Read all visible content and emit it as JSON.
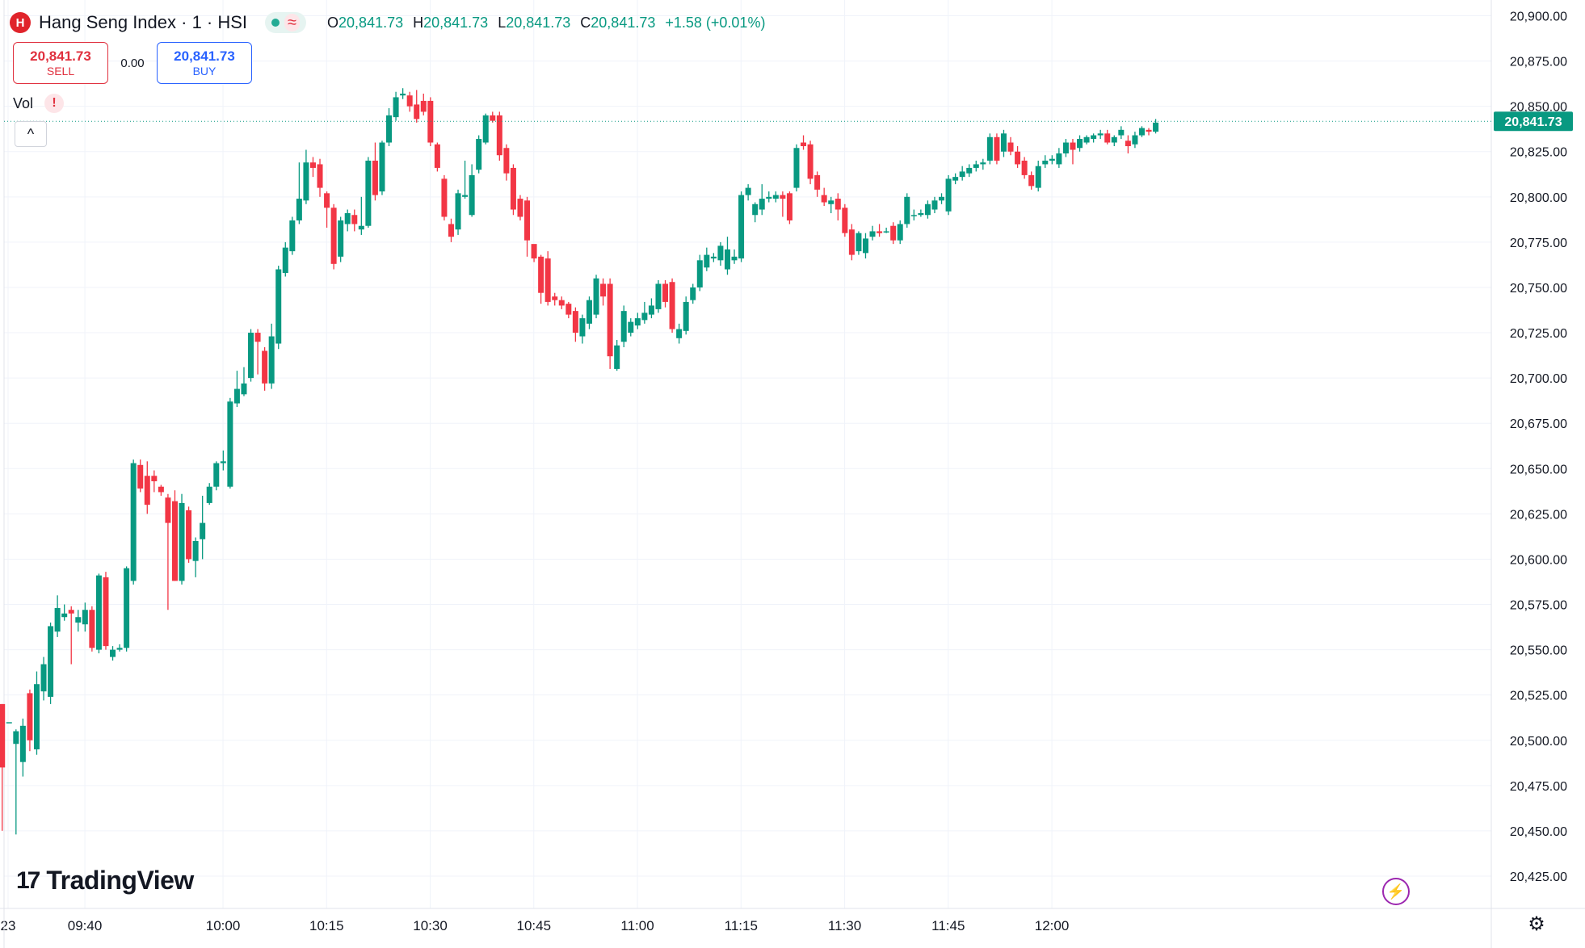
{
  "header": {
    "logo_label": "H",
    "title": "Hang Seng Index · 1 · HSI",
    "status_icon": "market-open-dot",
    "wave_icon": "≈",
    "ohlc": [
      {
        "key": "O",
        "value": "20,841.73"
      },
      {
        "key": "H",
        "value": "20,841.73"
      },
      {
        "key": "L",
        "value": "20,841.73"
      },
      {
        "key": "C",
        "value": "20,841.73"
      }
    ],
    "change": "+1.58 (+0.01%)"
  },
  "trade": {
    "sell_price": "20,841.73",
    "sell_label": "SELL",
    "spread": "0.00",
    "buy_price": "20,841.73",
    "buy_label": "BUY"
  },
  "volume": {
    "label": "Vol",
    "warning": "!"
  },
  "collapse_icon": "^",
  "brand": {
    "mark": "17",
    "name": "TradingView"
  },
  "colors": {
    "up": "#089981",
    "down": "#f23645",
    "grid": "#f0f3fa",
    "axis_text": "#131722",
    "last_price_bg": "#089981"
  },
  "chart_data": {
    "type": "candlestick",
    "title": "Hang Seng Index · 1 · HSI",
    "ylim": [
      20410,
      20910
    ],
    "yticks": [
      20425,
      20450,
      20475,
      20500,
      20525,
      20550,
      20575,
      20600,
      20625,
      20650,
      20675,
      20700,
      20725,
      20750,
      20775,
      20800,
      20825,
      20850,
      20875,
      20900
    ],
    "ytick_labels": [
      "20,425.00",
      "20,450.00",
      "20,475.00",
      "20,500.00",
      "20,525.00",
      "20,550.00",
      "20,575.00",
      "20,600.00",
      "20,625.00",
      "20,650.00",
      "20,675.00",
      "20,700.00",
      "20,725.00",
      "20,750.00",
      "20,775.00",
      "20,800.00",
      "20,825.00",
      "20,850.00",
      "20,875.00",
      "20,900.00"
    ],
    "xticks": [
      {
        "label": "23",
        "minute": 9
      },
      {
        "label": "09:40",
        "minute": 20
      },
      {
        "label": "10:00",
        "minute": 40
      },
      {
        "label": "10:15",
        "minute": 55
      },
      {
        "label": "10:30",
        "minute": 70
      },
      {
        "label": "10:45",
        "minute": 85
      },
      {
        "label": "11:00",
        "minute": 100
      },
      {
        "label": "11:15",
        "minute": 115
      },
      {
        "label": "11:30",
        "minute": 130
      },
      {
        "label": "11:45",
        "minute": 145
      },
      {
        "label": "12:00",
        "minute": 160
      }
    ],
    "last_price": 20841.73,
    "last_price_label": "20,841.73",
    "grid": true,
    "candles": [
      [
        20520,
        20485,
        20450,
        20520
      ],
      [
        20510,
        20510,
        20510,
        20510
      ],
      [
        20498,
        20505,
        20448,
        20506
      ],
      [
        20488,
        20508,
        20480,
        20512
      ],
      [
        20526,
        20500,
        20494,
        20528
      ],
      [
        20495,
        20531,
        20492,
        20538
      ],
      [
        20527,
        20542,
        20522,
        20546
      ],
      [
        20524,
        20563,
        20520,
        20565
      ],
      [
        20560,
        20573,
        20557,
        20580
      ],
      [
        20568,
        20570,
        20566,
        20575
      ],
      [
        20572,
        20570,
        20542,
        20574
      ],
      [
        20565,
        20568,
        20560,
        20572
      ],
      [
        20564,
        20572,
        20560,
        20576
      ],
      [
        20572,
        20551,
        20549,
        20574
      ],
      [
        20550,
        20591,
        20548,
        20592
      ],
      [
        20590,
        20552,
        20550,
        20593
      ],
      [
        20546,
        20550,
        20544,
        20552
      ],
      [
        20550,
        20551,
        20549,
        20553
      ],
      [
        20551,
        20595,
        20549,
        20596
      ],
      [
        20588,
        20653,
        20586,
        20655
      ],
      [
        20652,
        20639,
        20637,
        20655
      ],
      [
        20646,
        20630,
        20625,
        20654
      ],
      [
        20646,
        20643,
        20637,
        20649
      ],
      [
        20640,
        20637,
        20635,
        20641
      ],
      [
        20634,
        20620,
        20572,
        20636
      ],
      [
        20632,
        20588,
        20588,
        20638
      ],
      [
        20588,
        20631,
        20586,
        20636
      ],
      [
        20627,
        20600,
        20598,
        20629
      ],
      [
        20599,
        20610,
        20590,
        20612
      ],
      [
        20611,
        20620,
        20600,
        20635
      ],
      [
        20631,
        20640,
        20630,
        20642
      ],
      [
        20640,
        20653,
        20638,
        20654
      ],
      [
        20653,
        20654,
        20649,
        20660
      ],
      [
        20640,
        20687,
        20639,
        20689
      ],
      [
        20686,
        20694,
        20684,
        20704
      ],
      [
        20691,
        20697,
        20690,
        20706
      ],
      [
        20700,
        20725,
        20698,
        20727
      ],
      [
        20725,
        20720,
        20702,
        20727
      ],
      [
        20715,
        20697,
        20693,
        20717
      ],
      [
        20697,
        20723,
        20694,
        20730
      ],
      [
        20719,
        20760,
        20716,
        20762
      ],
      [
        20758,
        20772,
        20756,
        20775
      ],
      [
        20770,
        20787,
        20768,
        20789
      ],
      [
        20787,
        20799,
        20785,
        20819
      ],
      [
        20798,
        20819,
        20796,
        20826
      ],
      [
        20819,
        20816,
        20811,
        20822
      ],
      [
        20818,
        20805,
        20800,
        20821
      ],
      [
        20802,
        20794,
        20783,
        20803
      ],
      [
        20794,
        20763,
        20760,
        20796
      ],
      [
        20767,
        20787,
        20764,
        20789
      ],
      [
        20785,
        20791,
        20781,
        20793
      ],
      [
        20790,
        20785,
        20781,
        20793
      ],
      [
        20782,
        20784,
        20779,
        20800
      ],
      [
        20784,
        20820,
        20783,
        20822
      ],
      [
        20820,
        20801,
        20798,
        20830
      ],
      [
        20803,
        20830,
        20801,
        20831
      ],
      [
        20830,
        20845,
        20828,
        20849
      ],
      [
        20844,
        20855,
        20842,
        20858
      ],
      [
        20856,
        20857,
        20854,
        20860
      ],
      [
        20856,
        20850,
        20847,
        20858
      ],
      [
        20851,
        20843,
        20841,
        20859
      ],
      [
        20853,
        20847,
        20845,
        20857
      ],
      [
        20853,
        20830,
        20828,
        20855
      ],
      [
        20829,
        20816,
        20814,
        20830
      ],
      [
        20810,
        20789,
        20787,
        20812
      ],
      [
        20785,
        20778,
        20775,
        20788
      ],
      [
        20782,
        20802,
        20779,
        20804
      ],
      [
        20800,
        20801,
        20799,
        20820
      ],
      [
        20790,
        20812,
        20789,
        20818
      ],
      [
        20815,
        20832,
        20813,
        20834
      ],
      [
        20830,
        20845,
        20829,
        20846
      ],
      [
        20845,
        20842,
        20841,
        20847
      ],
      [
        20845,
        20823,
        20820,
        20847
      ],
      [
        20827,
        20813,
        20809,
        20829
      ],
      [
        20816,
        20793,
        20790,
        20818
      ],
      [
        20799,
        20789,
        20787,
        20801
      ],
      [
        20798,
        20776,
        20767,
        20800
      ],
      [
        20774,
        20766,
        20764,
        20773
      ],
      [
        20767,
        20747,
        20741,
        20768
      ],
      [
        20766,
        20742,
        20740,
        20770
      ],
      [
        20745,
        20743,
        20740,
        20747
      ],
      [
        20743,
        20740,
        20738,
        20745
      ],
      [
        20741,
        20735,
        20733,
        20742
      ],
      [
        20737,
        20725,
        20720,
        20739
      ],
      [
        20723,
        20733,
        20719,
        20735
      ],
      [
        20730,
        20743,
        20727,
        20745
      ],
      [
        20735,
        20755,
        20733,
        20757
      ],
      [
        20752,
        20745,
        20740,
        20755
      ],
      [
        20752,
        20712,
        20705,
        20755
      ],
      [
        20705,
        20718,
        20704,
        20721
      ],
      [
        20720,
        20737,
        20717,
        20740
      ],
      [
        20725,
        20731,
        20723,
        20733
      ],
      [
        20729,
        20733,
        20727,
        20736
      ],
      [
        20732,
        20736,
        20730,
        20742
      ],
      [
        20735,
        20740,
        20733,
        20744
      ],
      [
        20738,
        20752,
        20736,
        20754
      ],
      [
        20752,
        20742,
        20739,
        20754
      ],
      [
        20753,
        20727,
        20725,
        20755
      ],
      [
        20722,
        20727,
        20719,
        20730
      ],
      [
        20726,
        20742,
        20724,
        20745
      ],
      [
        20743,
        20750,
        20741,
        20752
      ],
      [
        20750,
        20765,
        20748,
        20768
      ],
      [
        20761,
        20768,
        20759,
        20772
      ],
      [
        20766,
        20767,
        20764,
        20769
      ],
      [
        20765,
        20773,
        20762,
        20775
      ],
      [
        20760,
        20771,
        20757,
        20778
      ],
      [
        20765,
        20767,
        20763,
        20771
      ],
      [
        20766,
        20801,
        20764,
        20803
      ],
      [
        20801,
        20805,
        20798,
        20807
      ],
      [
        20790,
        20796,
        20786,
        20797
      ],
      [
        20793,
        20799,
        20790,
        20807
      ],
      [
        20799,
        20800,
        20797,
        20803
      ],
      [
        20799,
        20801,
        20797,
        20803
      ],
      [
        20801,
        20799,
        20789,
        20803
      ],
      [
        20802,
        20787,
        20785,
        20803
      ],
      [
        20805,
        20827,
        20803,
        20829
      ],
      [
        20830,
        20828,
        20826,
        20834
      ],
      [
        20829,
        20810,
        20807,
        20831
      ],
      [
        20812,
        20804,
        20800,
        20814
      ],
      [
        20801,
        20797,
        20795,
        20805
      ],
      [
        20796,
        20798,
        20791,
        20800
      ],
      [
        20799,
        20793,
        20787,
        20802
      ],
      [
        20794,
        20780,
        20778,
        20796
      ],
      [
        20782,
        20768,
        20765,
        20785
      ],
      [
        20770,
        20780,
        20768,
        20781
      ],
      [
        20769,
        20777,
        20766,
        20780
      ],
      [
        20778,
        20781,
        20776,
        20784
      ],
      [
        20781,
        20780,
        20778,
        20785
      ],
      [
        20781,
        20781,
        20780,
        20783
      ],
      [
        20784,
        20776,
        20774,
        20786
      ],
      [
        20776,
        20785,
        20774,
        20787
      ],
      [
        20785,
        20800,
        20783,
        20802
      ],
      [
        20790,
        20790,
        20787,
        20793
      ],
      [
        20790,
        20791,
        20789,
        20793
      ],
      [
        20790,
        20796,
        20788,
        20798
      ],
      [
        20793,
        20798,
        20791,
        20800
      ],
      [
        20798,
        20800,
        20796,
        20802
      ],
      [
        20792,
        20810,
        20790,
        20812
      ],
      [
        20809,
        20811,
        20807,
        20813
      ],
      [
        20811,
        20814,
        20809,
        20817
      ],
      [
        20813,
        20816,
        20811,
        20818
      ],
      [
        20816,
        20818,
        20814,
        20820
      ],
      [
        20818,
        20819,
        20815,
        20821
      ],
      [
        20820,
        20833,
        20818,
        20835
      ],
      [
        20833,
        20820,
        20818,
        20835
      ],
      [
        20825,
        20835,
        20822,
        20837
      ],
      [
        20830,
        20825,
        20823,
        20833
      ],
      [
        20825,
        20818,
        20816,
        20828
      ],
      [
        20820,
        20812,
        20810,
        20822
      ],
      [
        20812,
        20806,
        20804,
        20814
      ],
      [
        20805,
        20817,
        20803,
        20820
      ],
      [
        20818,
        20820,
        20816,
        20823
      ],
      [
        20820,
        20821,
        20818,
        20823
      ],
      [
        20818,
        20824,
        20816,
        20827
      ],
      [
        20824,
        20830,
        20822,
        20832
      ],
      [
        20830,
        20826,
        20818,
        20832
      ],
      [
        20827,
        20832,
        20825,
        20834
      ],
      [
        20830,
        20833,
        20829,
        20834
      ],
      [
        20832,
        20834,
        20830,
        20835
      ],
      [
        20834,
        20835,
        20832,
        20837
      ],
      [
        20835,
        20830,
        20829,
        20837
      ],
      [
        20830,
        20833,
        20828,
        20834
      ],
      [
        20834,
        20837,
        20832,
        20839
      ],
      [
        20831,
        20828,
        20824,
        20834
      ],
      [
        20829,
        20834,
        20827,
        20836
      ],
      [
        20834,
        20838,
        20833,
        20839
      ],
      [
        20837,
        20836,
        20834,
        20838
      ],
      [
        20836,
        20841,
        20835,
        20843
      ]
    ]
  }
}
